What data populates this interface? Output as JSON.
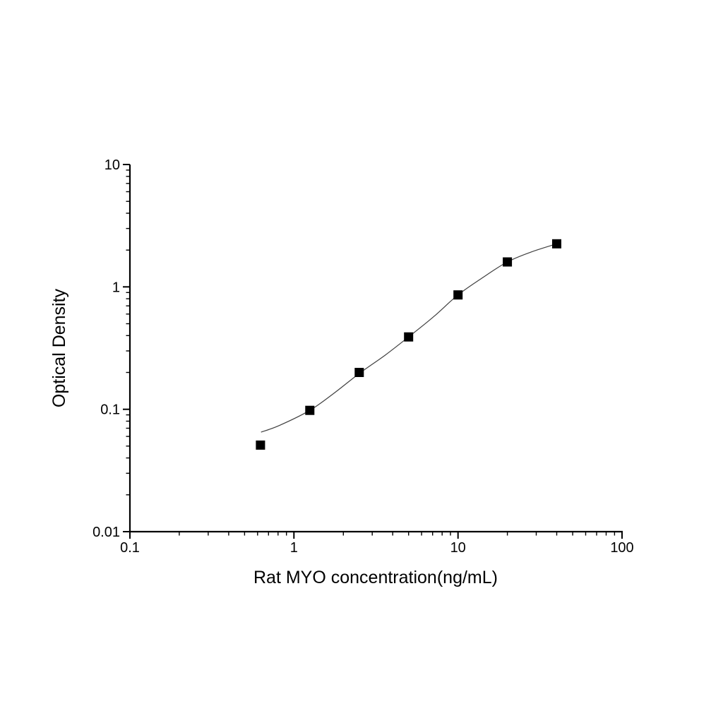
{
  "chart_data": {
    "type": "scatter",
    "title": "",
    "xlabel": "Rat MYO concentration(ng/mL)",
    "ylabel": "Optical Density",
    "x_scale": "log",
    "y_scale": "log",
    "xlim": [
      0.1,
      100
    ],
    "ylim": [
      0.01,
      10
    ],
    "x_tick_labels": [
      "0.1",
      "1",
      "10",
      "100"
    ],
    "y_tick_labels": [
      "0.01",
      "0.1",
      "1",
      "10"
    ],
    "grid": false,
    "legend": false,
    "marker": "black-filled-square",
    "marker_size_px": 13,
    "points": [
      [
        0.625,
        0.051
      ],
      [
        1.25,
        0.098
      ],
      [
        2.5,
        0.2
      ],
      [
        5,
        0.39
      ],
      [
        10,
        0.86
      ],
      [
        20,
        1.6
      ],
      [
        40,
        2.25
      ]
    ],
    "fit_curve": [
      [
        0.63,
        0.065
      ],
      [
        0.82,
        0.074
      ],
      [
        1.25,
        0.098
      ],
      [
        1.75,
        0.135
      ],
      [
        2.5,
        0.196
      ],
      [
        3.6,
        0.277
      ],
      [
        5,
        0.39
      ],
      [
        7.1,
        0.57
      ],
      [
        10,
        0.86
      ],
      [
        14,
        1.18
      ],
      [
        20,
        1.6
      ],
      [
        28,
        1.93
      ],
      [
        40,
        2.25
      ]
    ],
    "colors": {
      "axis": "#000000",
      "text": "#000000",
      "curve": "#404040",
      "marker": "#000000",
      "background": "#ffffff"
    }
  }
}
